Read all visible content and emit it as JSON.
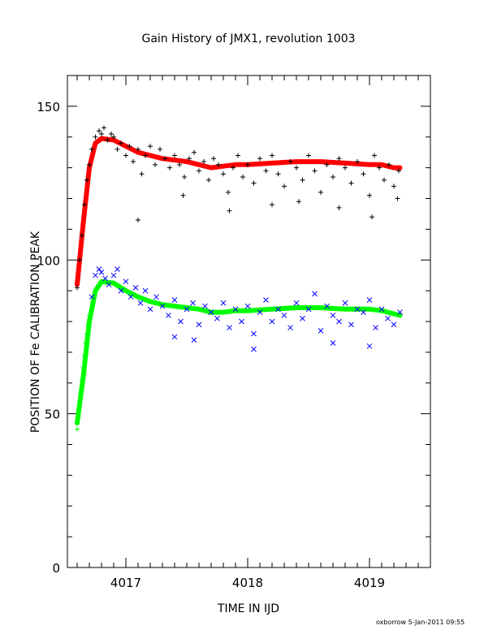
{
  "chart_data": {
    "type": "scatter",
    "title": "Gain History of JMX1, revolution 1003",
    "xlabel": "TIME IN IJD",
    "ylabel": "POSITION OF Fe CALIBRATION PEAK",
    "xlim": [
      4016.52,
      4019.5
    ],
    "ylim": [
      0,
      160
    ],
    "xticks": [
      4017,
      4018,
      4019
    ],
    "yticks": [
      0,
      50,
      100,
      150
    ],
    "grid": false,
    "legend": "none",
    "colors": {
      "upper_points": "#000000",
      "upper_fit": "#ff0000",
      "lower_points": "#0000ff",
      "lower_fit": "#00ff00",
      "lower_rise_points": "#00ff00"
    },
    "series": [
      {
        "kind": "fit",
        "color_key": "upper_fit",
        "x": [
          4016.6,
          4016.65,
          4016.7,
          4016.75,
          4016.8,
          4016.9,
          4017.0,
          4017.1,
          4017.2,
          4017.3,
          4017.4,
          4017.5,
          4017.6,
          4017.7,
          4017.8,
          4017.9,
          4018.0,
          4018.2,
          4018.4,
          4018.6,
          4018.8,
          4019.0,
          4019.1,
          4019.2,
          4019.25
        ],
        "y": [
          92,
          112,
          130,
          138,
          139.5,
          139,
          137,
          135,
          134,
          133,
          132.5,
          132,
          131,
          130,
          130.5,
          131,
          131,
          131.5,
          132,
          132,
          131.5,
          131,
          131,
          130,
          130
        ]
      },
      {
        "kind": "points",
        "color_key": "upper_points",
        "x": [
          4016.6,
          4016.62,
          4016.64,
          4016.66,
          4016.68,
          4016.7,
          4016.72,
          4016.75,
          4016.78,
          4016.8,
          4016.82,
          4016.85,
          4016.88,
          4016.9,
          4016.93,
          4016.96,
          4017.0,
          4017.03,
          4017.06,
          4017.1,
          4017.13,
          4017.16,
          4017.2,
          4017.24,
          4017.28,
          4017.32,
          4017.36,
          4017.4,
          4017.44,
          4017.48,
          4017.52,
          4017.56,
          4017.6,
          4017.64,
          4017.68,
          4017.72,
          4017.76,
          4017.8,
          4017.84,
          4017.88,
          4017.92,
          4017.96,
          4018.0,
          4018.05,
          4018.1,
          4018.15,
          4018.2,
          4018.25,
          4018.3,
          4018.35,
          4018.4,
          4018.45,
          4018.5,
          4018.55,
          4018.6,
          4018.65,
          4018.7,
          4018.75,
          4018.8,
          4018.85,
          4018.9,
          4018.95,
          4019.0,
          4019.04,
          4019.08,
          4019.12,
          4019.16,
          4019.2,
          4019.24,
          4017.1,
          4017.85,
          4018.2,
          4018.75,
          4019.02,
          4017.47,
          4018.42,
          4019.23
        ],
        "y": [
          91,
          100,
          108,
          118,
          126,
          131,
          136,
          140,
          142,
          141,
          143,
          139,
          141,
          140,
          136,
          138,
          134,
          137,
          132,
          136,
          128,
          134,
          137,
          131,
          136,
          133,
          130,
          134,
          131,
          127,
          133,
          135,
          129,
          132,
          126,
          133,
          131,
          128,
          122,
          130,
          134,
          127,
          131,
          125,
          133,
          129,
          134,
          128,
          124,
          132,
          130,
          126,
          134,
          129,
          122,
          131,
          127,
          133,
          130,
          125,
          132,
          128,
          121,
          134,
          130,
          126,
          131,
          124,
          129,
          113,
          116,
          118,
          117,
          114,
          121,
          119,
          120
        ]
      },
      {
        "kind": "fit",
        "color_key": "lower_fit",
        "x": [
          4016.6,
          4016.65,
          4016.7,
          4016.75,
          4016.8,
          4016.9,
          4017.0,
          4017.1,
          4017.2,
          4017.3,
          4017.4,
          4017.5,
          4017.6,
          4017.7,
          4017.8,
          4017.9,
          4018.0,
          4018.2,
          4018.4,
          4018.6,
          4018.8,
          4019.0,
          4019.1,
          4019.2,
          4019.25
        ],
        "y": [
          47,
          62,
          80,
          90,
          93,
          92.5,
          90,
          88,
          86.5,
          85.5,
          85,
          84.5,
          84,
          83,
          83,
          83.5,
          83.5,
          84,
          84.5,
          84.5,
          84,
          84,
          83.5,
          82.5,
          82
        ]
      },
      {
        "kind": "points",
        "color_key": "lower_rise_points",
        "x": [
          4016.6,
          4016.61,
          4016.62,
          4016.63,
          4016.64,
          4016.65,
          4016.66,
          4016.67,
          4016.68,
          4016.69,
          4016.7
        ],
        "y": [
          45,
          49,
          53,
          57,
          61,
          65,
          69,
          73,
          76,
          79,
          82
        ]
      },
      {
        "kind": "points",
        "color_key": "lower_points",
        "x": [
          4016.72,
          4016.75,
          4016.78,
          4016.8,
          4016.83,
          4016.86,
          4016.9,
          4016.93,
          4016.96,
          4017.0,
          4017.04,
          4017.08,
          4017.12,
          4017.16,
          4017.2,
          4017.25,
          4017.3,
          4017.35,
          4017.4,
          4017.45,
          4017.5,
          4017.55,
          4017.6,
          4017.65,
          4017.7,
          4017.75,
          4017.8,
          4017.85,
          4017.9,
          4017.95,
          4018.0,
          4018.05,
          4018.1,
          4018.15,
          4018.2,
          4018.25,
          4018.3,
          4018.35,
          4018.4,
          4018.45,
          4018.5,
          4018.55,
          4018.6,
          4018.65,
          4018.7,
          4018.75,
          4018.8,
          4018.85,
          4018.9,
          4018.95,
          4019.0,
          4019.05,
          4019.1,
          4019.15,
          4019.2,
          4019.25,
          4017.4,
          4017.56,
          4018.05,
          4018.7,
          4019.0
        ],
        "y": [
          88,
          95,
          97,
          96,
          94,
          92,
          95,
          97,
          90,
          93,
          88,
          91,
          86,
          90,
          84,
          88,
          85,
          82,
          87,
          80,
          84,
          86,
          79,
          85,
          83,
          81,
          86,
          78,
          84,
          80,
          85,
          76,
          83,
          87,
          80,
          84,
          82,
          78,
          86,
          81,
          84,
          89,
          77,
          85,
          82,
          80,
          86,
          79,
          84,
          83,
          87,
          78,
          84,
          81,
          79,
          83,
          75,
          74,
          71,
          73,
          72
        ]
      }
    ]
  },
  "footer": {
    "stamp": "oxborrow   5-Jan-2011 09:55"
  }
}
